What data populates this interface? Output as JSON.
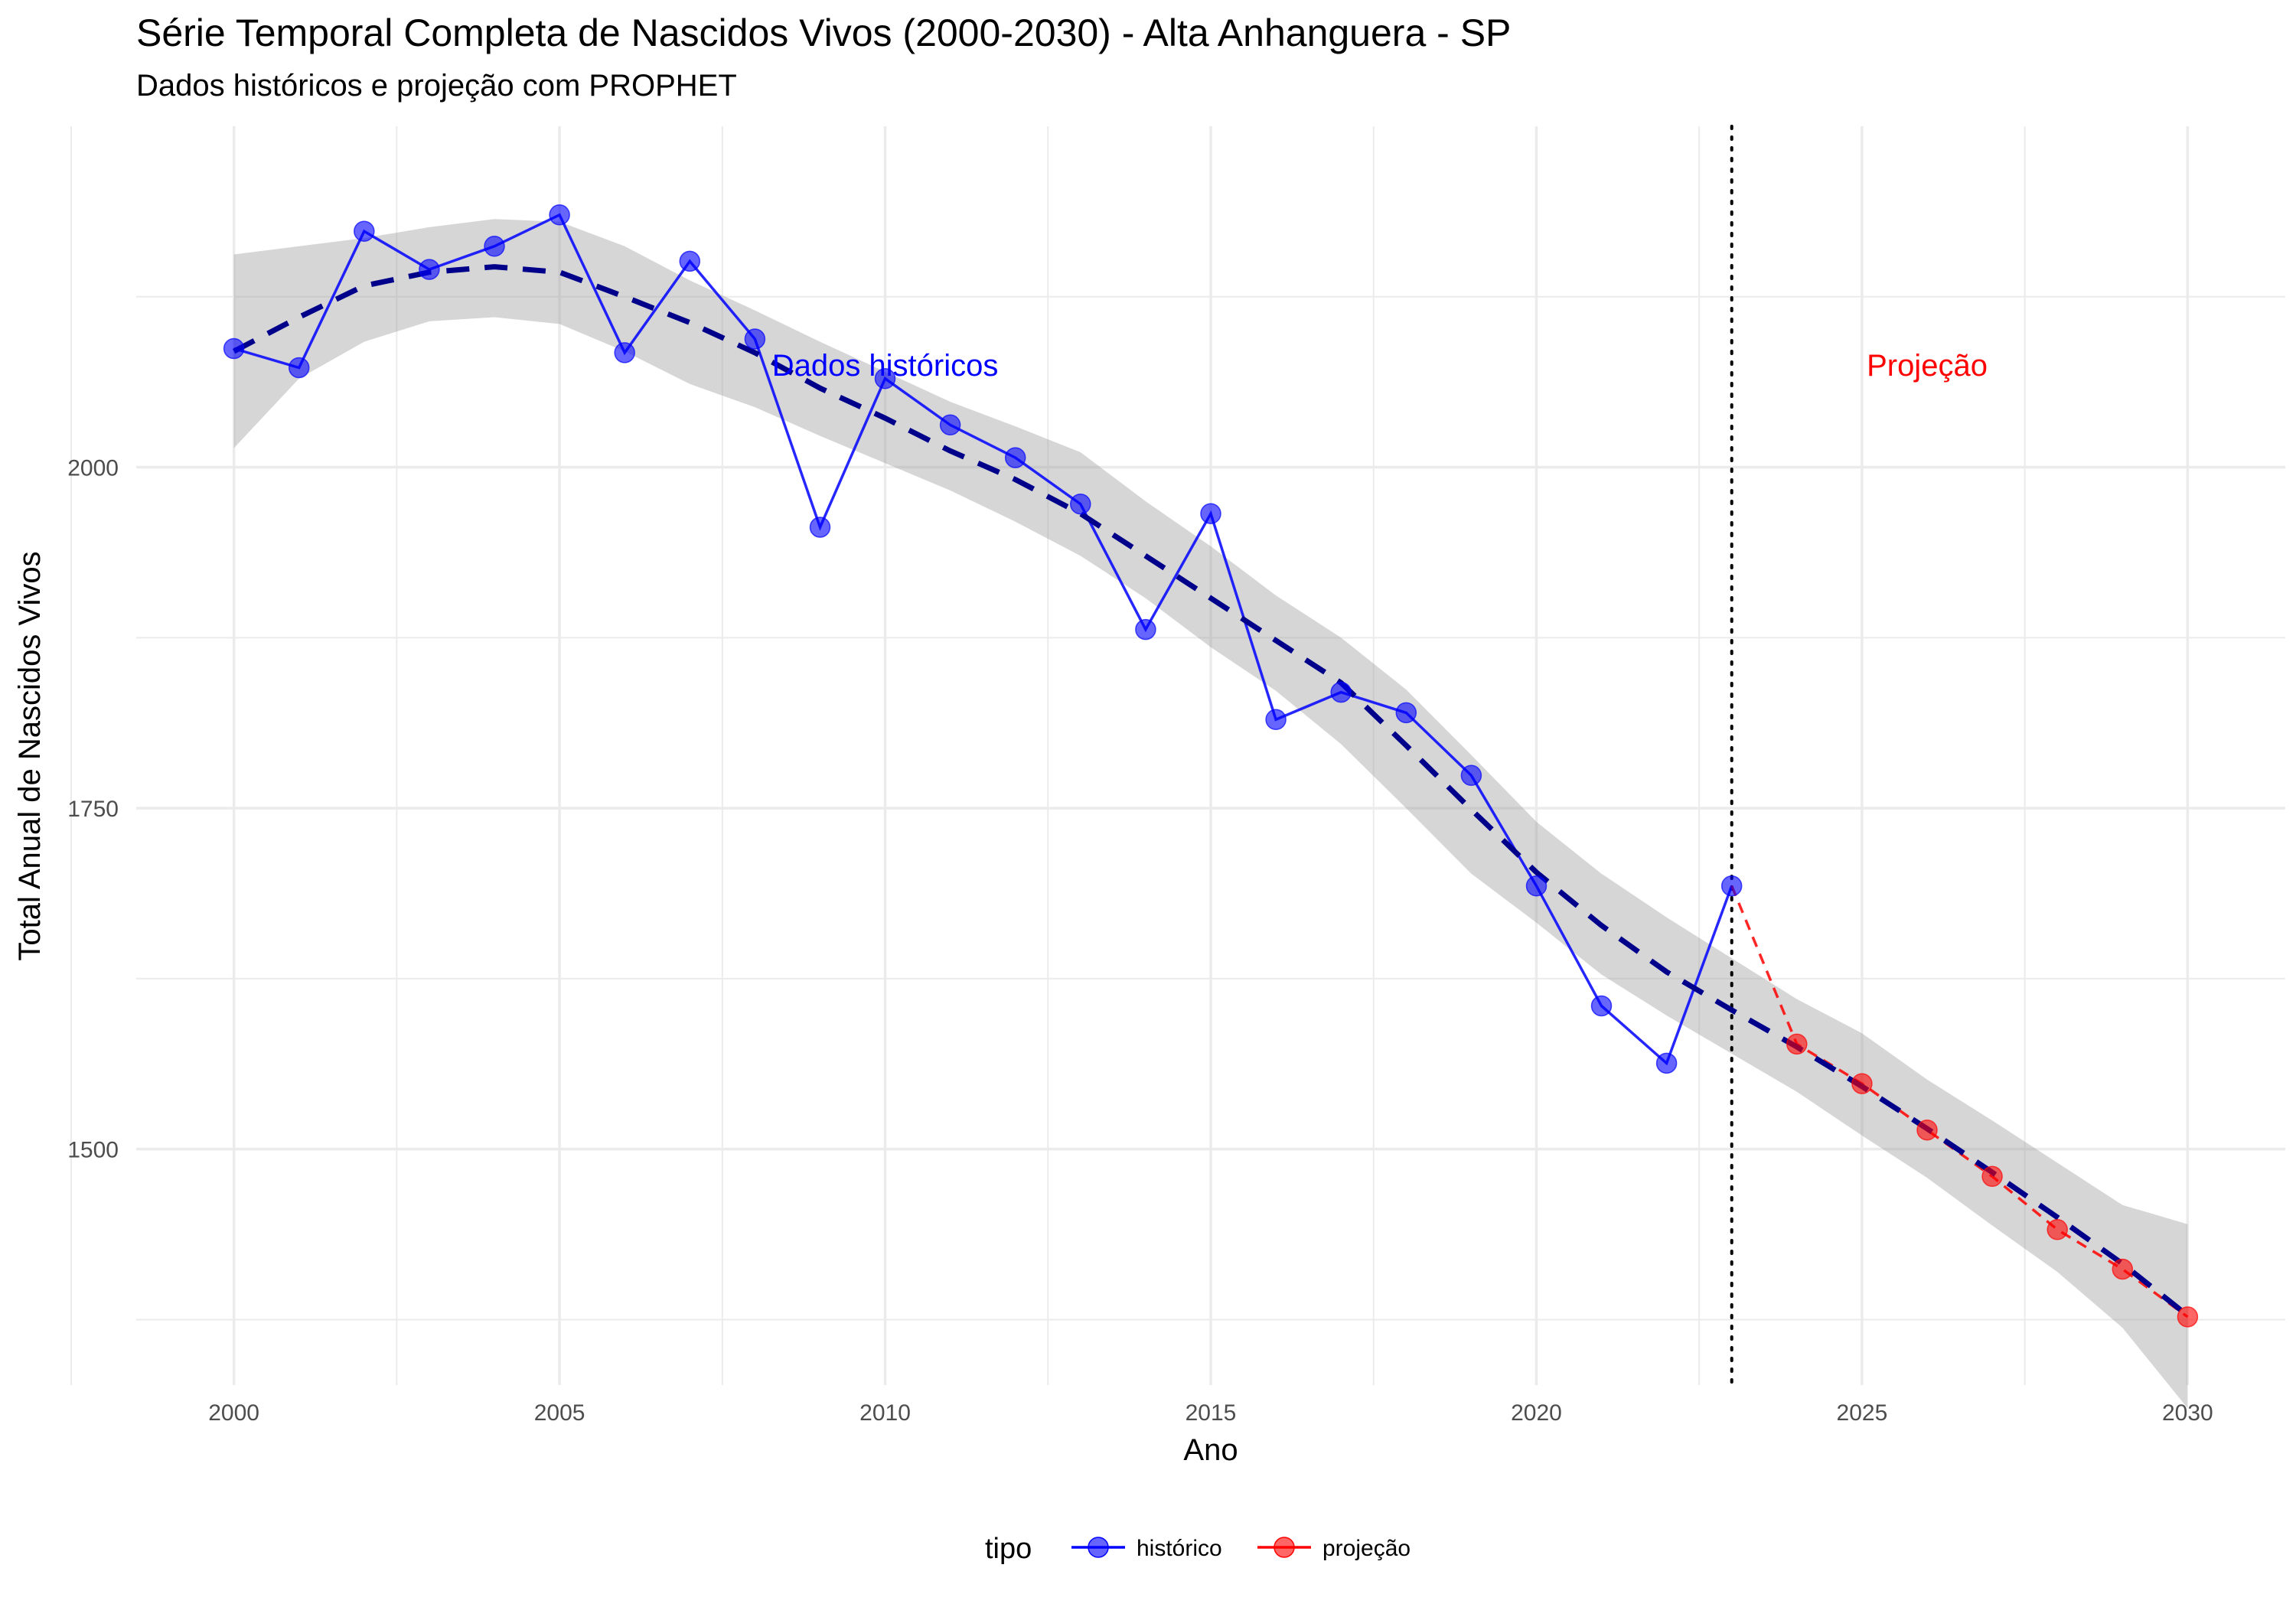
{
  "chart_data": {
    "type": "line",
    "title": "Série Temporal Completa de Nascidos Vivos (2000-2030) -  Alta Anhanguera - SP",
    "subtitle": "Dados históricos e projeção com PROPHET",
    "xlabel": "Ano",
    "ylabel": "Total Anual de Nascidos Vivos",
    "xlim": [
      1998.5,
      2031.5
    ],
    "ylim": [
      1327,
      2250
    ],
    "x_ticks": [
      2000,
      2005,
      2010,
      2015,
      2020,
      2025,
      2030
    ],
    "y_ticks": [
      1500,
      1750,
      2000
    ],
    "grid": true,
    "vline_x": 2023,
    "annotations": [
      {
        "text": "Dados históricos",
        "x": 2010,
        "y": 2075,
        "color": "#0000ff"
      },
      {
        "text": "Projeção",
        "x": 2026,
        "y": 2075,
        "color": "#ff0000"
      }
    ],
    "legend": {
      "title": "tipo",
      "position": "bottom",
      "entries": [
        {
          "label": "histórico",
          "color": "#0000ff"
        },
        {
          "label": "projeção",
          "color": "#ff0000"
        }
      ]
    },
    "series": [
      {
        "name": "histórico",
        "color": "#0000ff",
        "x": [
          2000,
          2001,
          2002,
          2003,
          2004,
          2005,
          2006,
          2007,
          2008,
          2009,
          2010,
          2011,
          2012,
          2013,
          2014,
          2015,
          2016,
          2017,
          2018,
          2019,
          2020,
          2021,
          2022,
          2023
        ],
        "values": [
          2087,
          2073,
          2173,
          2145,
          2162,
          2185,
          2084,
          2151,
          2094,
          1956,
          2065,
          2031,
          2007,
          1973,
          1881,
          1966,
          1815,
          1835,
          1820,
          1774,
          1693,
          1605,
          1563,
          1693
        ]
      },
      {
        "name": "projeção",
        "color": "#ff0000",
        "x": [
          2023,
          2024,
          2025,
          2026,
          2027,
          2028,
          2029,
          2030
        ],
        "values": [
          1693,
          1577,
          1548,
          1514,
          1480,
          1441,
          1412,
          1377
        ]
      }
    ],
    "trend": {
      "color": "#00008b",
      "x": [
        2000,
        2001,
        2002,
        2003,
        2004,
        2005,
        2006,
        2007,
        2008,
        2009,
        2010,
        2011,
        2012,
        2013,
        2014,
        2015,
        2016,
        2017,
        2018,
        2019,
        2020,
        2021,
        2022,
        2023,
        2024,
        2025,
        2026,
        2027,
        2028,
        2029,
        2030
      ],
      "values": [
        2085,
        2110,
        2133,
        2143,
        2147,
        2143,
        2125,
        2106,
        2084,
        2058,
        2036,
        2012,
        1991,
        1966,
        1935,
        1904,
        1873,
        1842,
        1796,
        1749,
        1703,
        1664,
        1630,
        1602,
        1575,
        1546,
        1515,
        1483,
        1450,
        1416,
        1378
      ]
    },
    "confidence_band": {
      "x": [
        2000,
        2001,
        2002,
        2003,
        2004,
        2005,
        2006,
        2007,
        2008,
        2009,
        2010,
        2011,
        2012,
        2013,
        2014,
        2015,
        2016,
        2017,
        2018,
        2019,
        2020,
        2021,
        2022,
        2023,
        2024,
        2025,
        2026,
        2027,
        2028,
        2029,
        2030
      ],
      "upper": [
        2156,
        2162,
        2168,
        2176,
        2182,
        2180,
        2162,
        2137,
        2115,
        2092,
        2070,
        2048,
        2030,
        2011,
        1975,
        1942,
        1906,
        1875,
        1837,
        1789,
        1740,
        1702,
        1670,
        1640,
        1610,
        1585,
        1551,
        1521,
        1490,
        1459,
        1445
      ],
      "lower": [
        2014,
        2065,
        2092,
        2107,
        2110,
        2105,
        2085,
        2061,
        2044,
        2023,
        2003,
        1983,
        1960,
        1935,
        1904,
        1868,
        1836,
        1797,
        1750,
        1702,
        1666,
        1628,
        1598,
        1570,
        1542,
        1510,
        1479,
        1444,
        1410,
        1369,
        1310
      ]
    }
  }
}
